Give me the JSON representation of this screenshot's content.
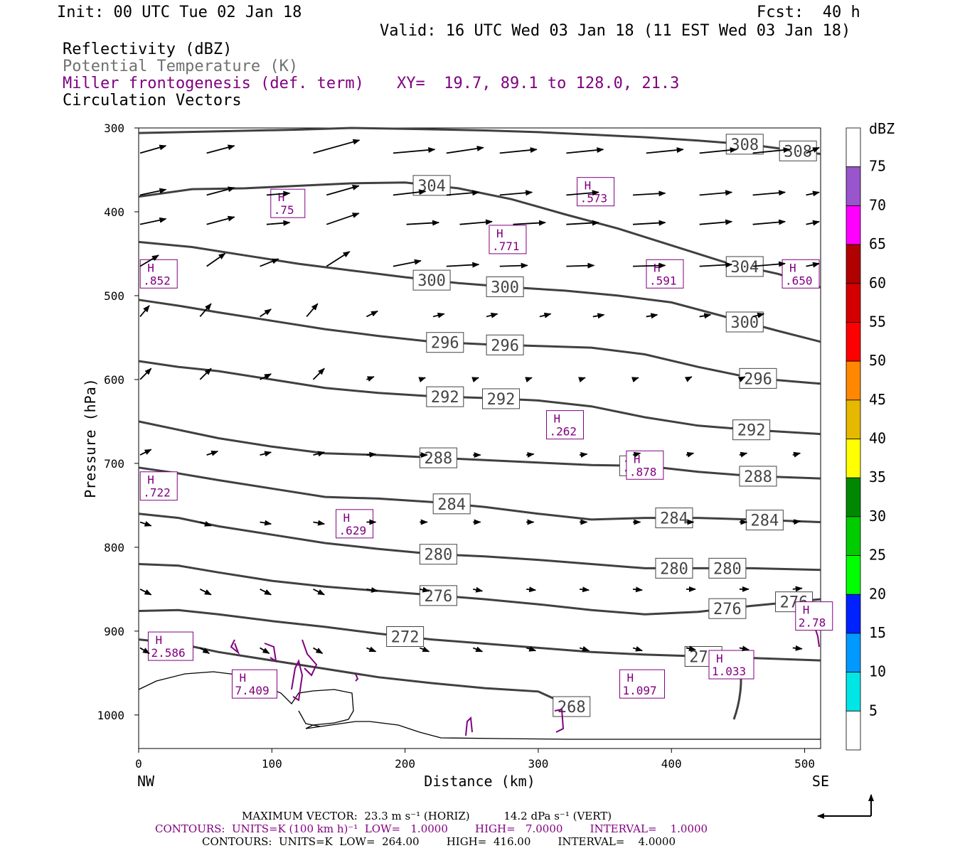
{
  "header": {
    "init": "Init: 00 UTC Tue 02 Jan 18",
    "fcst": "Fcst:  40 h",
    "valid": "Valid: 16 UTC Wed 03 Jan 18 (11 EST Wed 03 Jan 18)",
    "field1": "Reflectivity (dBZ)",
    "field2": "Potential Temperature (K)",
    "field3": "Miller frontogenesis (def. term)",
    "xy": "XY=  19.7, 89.1 to 128.0, 21.3",
    "field4": "Circulation Vectors"
  },
  "colors": {
    "theta": "#404040",
    "fronto": "#800080",
    "refl_line": "#000000"
  },
  "chart_data": {
    "type": "line",
    "xlabel": "Distance (km)",
    "ylabel": "Pressure (hPa)",
    "xlim": [
      0,
      512
    ],
    "ylim": [
      300,
      1040
    ],
    "xticks": [
      0,
      100,
      200,
      300,
      400,
      500
    ],
    "yticks": [
      300,
      400,
      500,
      600,
      700,
      800,
      900,
      1000
    ],
    "x_left_label": "NW",
    "x_right_label": "SE",
    "theta_contours": [
      {
        "value": 308,
        "x": [
          0,
          60,
          120,
          160,
          200,
          260,
          300,
          340,
          380,
          420,
          460,
          512
        ],
        "p": [
          306,
          304,
          302,
          300,
          301,
          303,
          305,
          308,
          311,
          315,
          320,
          331
        ]
      },
      {
        "value": 304,
        "x": [
          0,
          40,
          80,
          120,
          160,
          200,
          240,
          280,
          320,
          360,
          400,
          440,
          480,
          512
        ],
        "p": [
          382,
          373,
          372,
          369,
          366,
          365,
          372,
          385,
          403,
          420,
          440,
          460,
          474,
          490
        ]
      },
      {
        "value": 300,
        "x": [
          0,
          40,
          80,
          120,
          160,
          200,
          240,
          280,
          320,
          360,
          400,
          440,
          480,
          512
        ],
        "p": [
          436,
          442,
          452,
          462,
          470,
          478,
          485,
          490,
          494,
          500,
          508,
          525,
          542,
          555
        ]
      },
      {
        "value": 296,
        "x": [
          0,
          30,
          60,
          100,
          140,
          180,
          220,
          260,
          300,
          340,
          380,
          420,
          460,
          512
        ],
        "p": [
          505,
          512,
          520,
          530,
          540,
          548,
          555,
          558,
          560,
          562,
          570,
          585,
          598,
          605
        ]
      },
      {
        "value": 292,
        "x": [
          0,
          30,
          60,
          100,
          140,
          180,
          220,
          260,
          300,
          340,
          380,
          420,
          460,
          512
        ],
        "p": [
          578,
          585,
          590,
          600,
          610,
          616,
          620,
          622,
          625,
          632,
          645,
          655,
          660,
          665
        ]
      },
      {
        "value": 288,
        "x": [
          0,
          30,
          60,
          100,
          140,
          180,
          220,
          260,
          300,
          340,
          380,
          420,
          460,
          512
        ],
        "p": [
          650,
          660,
          670,
          680,
          688,
          690,
          693,
          696,
          699,
          702,
          703,
          710,
          715,
          718
        ]
      },
      {
        "value": 284,
        "x": [
          0,
          30,
          60,
          100,
          140,
          180,
          220,
          260,
          300,
          340,
          380,
          420,
          460,
          512
        ],
        "p": [
          705,
          712,
          720,
          730,
          740,
          742,
          746,
          752,
          760,
          767,
          765,
          765,
          767,
          770
        ]
      },
      {
        "value": 280,
        "x": [
          0,
          30,
          60,
          100,
          140,
          180,
          220,
          260,
          300,
          340,
          380,
          420,
          460,
          512
        ],
        "p": [
          760,
          765,
          775,
          785,
          795,
          802,
          808,
          811,
          815,
          820,
          825,
          825,
          825,
          827
        ]
      },
      {
        "value": 276,
        "x": [
          0,
          30,
          60,
          100,
          140,
          180,
          220,
          260,
          300,
          340,
          380,
          420,
          460,
          512
        ],
        "p": [
          820,
          822,
          830,
          840,
          847,
          852,
          857,
          862,
          868,
          875,
          880,
          877,
          870,
          862
        ]
      },
      {
        "value": 272,
        "x": [
          0,
          30,
          60,
          100,
          140,
          180,
          220,
          260,
          300,
          340,
          380,
          420,
          460,
          512
        ],
        "p": [
          876,
          875,
          880,
          888,
          895,
          903,
          910,
          915,
          920,
          925,
          928,
          930,
          932,
          935
        ]
      },
      {
        "value": 268,
        "x": [
          0,
          30,
          60,
          100,
          140,
          180,
          220,
          260,
          300,
          325
        ],
        "p": [
          910,
          915,
          925,
          935,
          945,
          955,
          962,
          968,
          972,
          990
        ]
      }
    ],
    "fronto_maxima": [
      {
        "label": "H",
        "value": ".75",
        "x": 112,
        "p": 390
      },
      {
        "label": "H",
        "value": ".573",
        "x": 342,
        "p": 376
      },
      {
        "label": "H",
        "value": ".771",
        "x": 276,
        "p": 433
      },
      {
        "label": "H",
        "value": ".852",
        "x": 14,
        "p": 474
      },
      {
        "label": "H",
        "value": ".591",
        "x": 394,
        "p": 474
      },
      {
        "label": "H",
        "value": ".650",
        "x": 496,
        "p": 474
      },
      {
        "label": "H",
        "value": ".262",
        "x": 319,
        "p": 654
      },
      {
        "label": "H",
        "value": ".878",
        "x": 379,
        "p": 702
      },
      {
        "label": "H",
        "value": ".722",
        "x": 14,
        "p": 727
      },
      {
        "label": "H",
        "value": ".629",
        "x": 161,
        "p": 772
      },
      {
        "label": "H",
        "value": "2.586",
        "x": 20,
        "p": 918
      },
      {
        "label": "H",
        "value": "2.78",
        "x": 506,
        "p": 882
      },
      {
        "label": "H",
        "value": "7.409",
        "x": 83,
        "p": 963
      },
      {
        "label": "H",
        "value": "1.097",
        "x": 374,
        "p": 963
      },
      {
        "label": "H",
        "value": "1.033",
        "x": 441,
        "p": 940
      }
    ],
    "colorbar": {
      "title": "dBZ",
      "ticks": [
        "5",
        "10",
        "15",
        "20",
        "25",
        "30",
        "35",
        "40",
        "45",
        "50",
        "55",
        "60",
        "65",
        "70",
        "75"
      ],
      "colors": [
        "#ffffff",
        "#00e6e6",
        "#0099ff",
        "#0022ff",
        "#00ff00",
        "#00cc00",
        "#008800",
        "#ffff00",
        "#e6b800",
        "#ff8800",
        "#ff0000",
        "#d40000",
        "#b00000",
        "#ff00ff",
        "#9955cc",
        "#ffffff"
      ]
    }
  },
  "footer": {
    "vector_line": "MAXIMUM VECTOR:  23.3 m s⁻¹ (HORIZ)          14.2 dPa s⁻¹ (VERT)",
    "contour_line1": "CONTOURS:  UNITS=K (100 km h)⁻¹  LOW=   1.0000        HIGH=   7.0000        INTERVAL=    1.0000",
    "contour_line2": "CONTOURS:  UNITS=K  LOW=  264.00        HIGH=  416.00        INTERVAL=    4.0000"
  }
}
